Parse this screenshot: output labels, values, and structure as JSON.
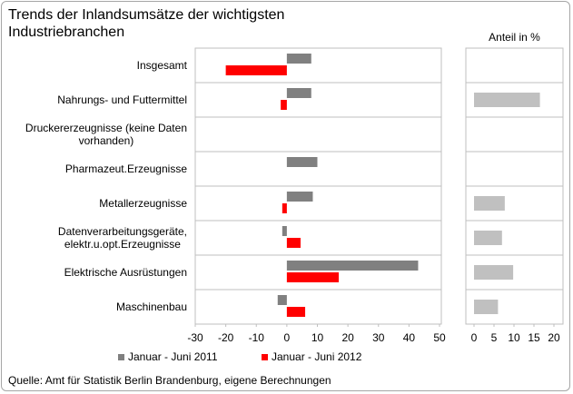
{
  "chart_data": [
    {
      "type": "hbar",
      "title": "Trends der Inlandsumsätze  der wichtigsten\nIndustriebranchen",
      "categories": [
        "Insgesamt",
        "Nahrungs- und Futtermittel",
        "Druckererzeugnisse (keine Daten\nvorhanden)",
        "Pharmazeut.Erzeugnisse",
        "Metallerzeugnisse",
        "Datenverarbeitungsgeräte,\nelektr.u.opt.Erzeugnisse",
        "Elektrische Ausrüstungen",
        "Maschinenbau"
      ],
      "series": [
        {
          "name": "Januar - Juni 2011",
          "color": "#808080",
          "values": [
            8,
            8,
            null,
            10,
            8.5,
            -1.5,
            43,
            -3
          ]
        },
        {
          "name": "Januar - Juni 2012",
          "color": "#ff0000",
          "values": [
            -20,
            -2,
            null,
            null,
            -1.5,
            4.5,
            17,
            6
          ]
        }
      ],
      "xlim": [
        -30,
        50
      ],
      "xticks": [
        -30,
        -20,
        -10,
        0,
        10,
        20,
        30,
        40,
        50
      ]
    },
    {
      "type": "hbar",
      "title": "Anteil in %",
      "series": [
        {
          "color": "#c0c0c0",
          "values": [
            null,
            16.5,
            null,
            null,
            7.7,
            7,
            9.8,
            6
          ]
        }
      ],
      "xlim": [
        0,
        20
      ],
      "xticks": [
        0,
        5,
        10,
        15,
        20
      ]
    }
  ],
  "source": "Quelle: Amt für Statistik Berlin Brandenburg, eigene Berechnungen"
}
